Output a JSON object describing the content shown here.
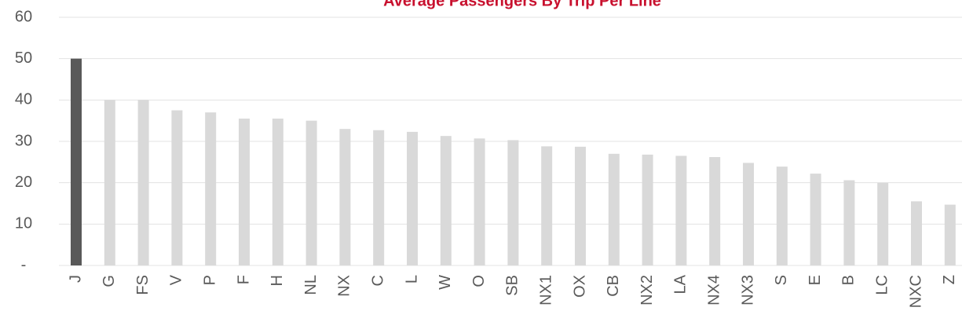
{
  "chart_data": {
    "type": "bar",
    "title": "Average Passengers By Trip Per Line",
    "categories": [
      "J",
      "G",
      "FS",
      "V",
      "P",
      "F",
      "H",
      "NL",
      "NX",
      "C",
      "L",
      "W",
      "O",
      "SB",
      "NX1",
      "OX",
      "CB",
      "NX2",
      "LA",
      "NX4",
      "NX3",
      "S",
      "E",
      "B",
      "LC",
      "NXC",
      "Z"
    ],
    "values": [
      50,
      40,
      40,
      37.5,
      37,
      35.5,
      35.5,
      35,
      33,
      32.7,
      32.3,
      31.3,
      30.7,
      30.3,
      28.8,
      28.7,
      27,
      26.8,
      26.5,
      26.2,
      24.8,
      23.9,
      22.2,
      20.6,
      20,
      15.5,
      14.7
    ],
    "colors": [
      "#595959",
      "#d9d9d9",
      "#d9d9d9",
      "#d9d9d9",
      "#d9d9d9",
      "#d9d9d9",
      "#d9d9d9",
      "#d9d9d9",
      "#d9d9d9",
      "#d9d9d9",
      "#d9d9d9",
      "#d9d9d9",
      "#d9d9d9",
      "#d9d9d9",
      "#d9d9d9",
      "#d9d9d9",
      "#d9d9d9",
      "#d9d9d9",
      "#d9d9d9",
      "#d9d9d9",
      "#d9d9d9",
      "#d9d9d9",
      "#d9d9d9",
      "#d9d9d9",
      "#d9d9d9",
      "#d9d9d9",
      "#d9d9d9"
    ],
    "ylim": [
      0,
      60
    ],
    "yticks": [
      {
        "value": 0,
        "label": "-"
      },
      10,
      20,
      30,
      40,
      50,
      60
    ],
    "grid": true
  }
}
